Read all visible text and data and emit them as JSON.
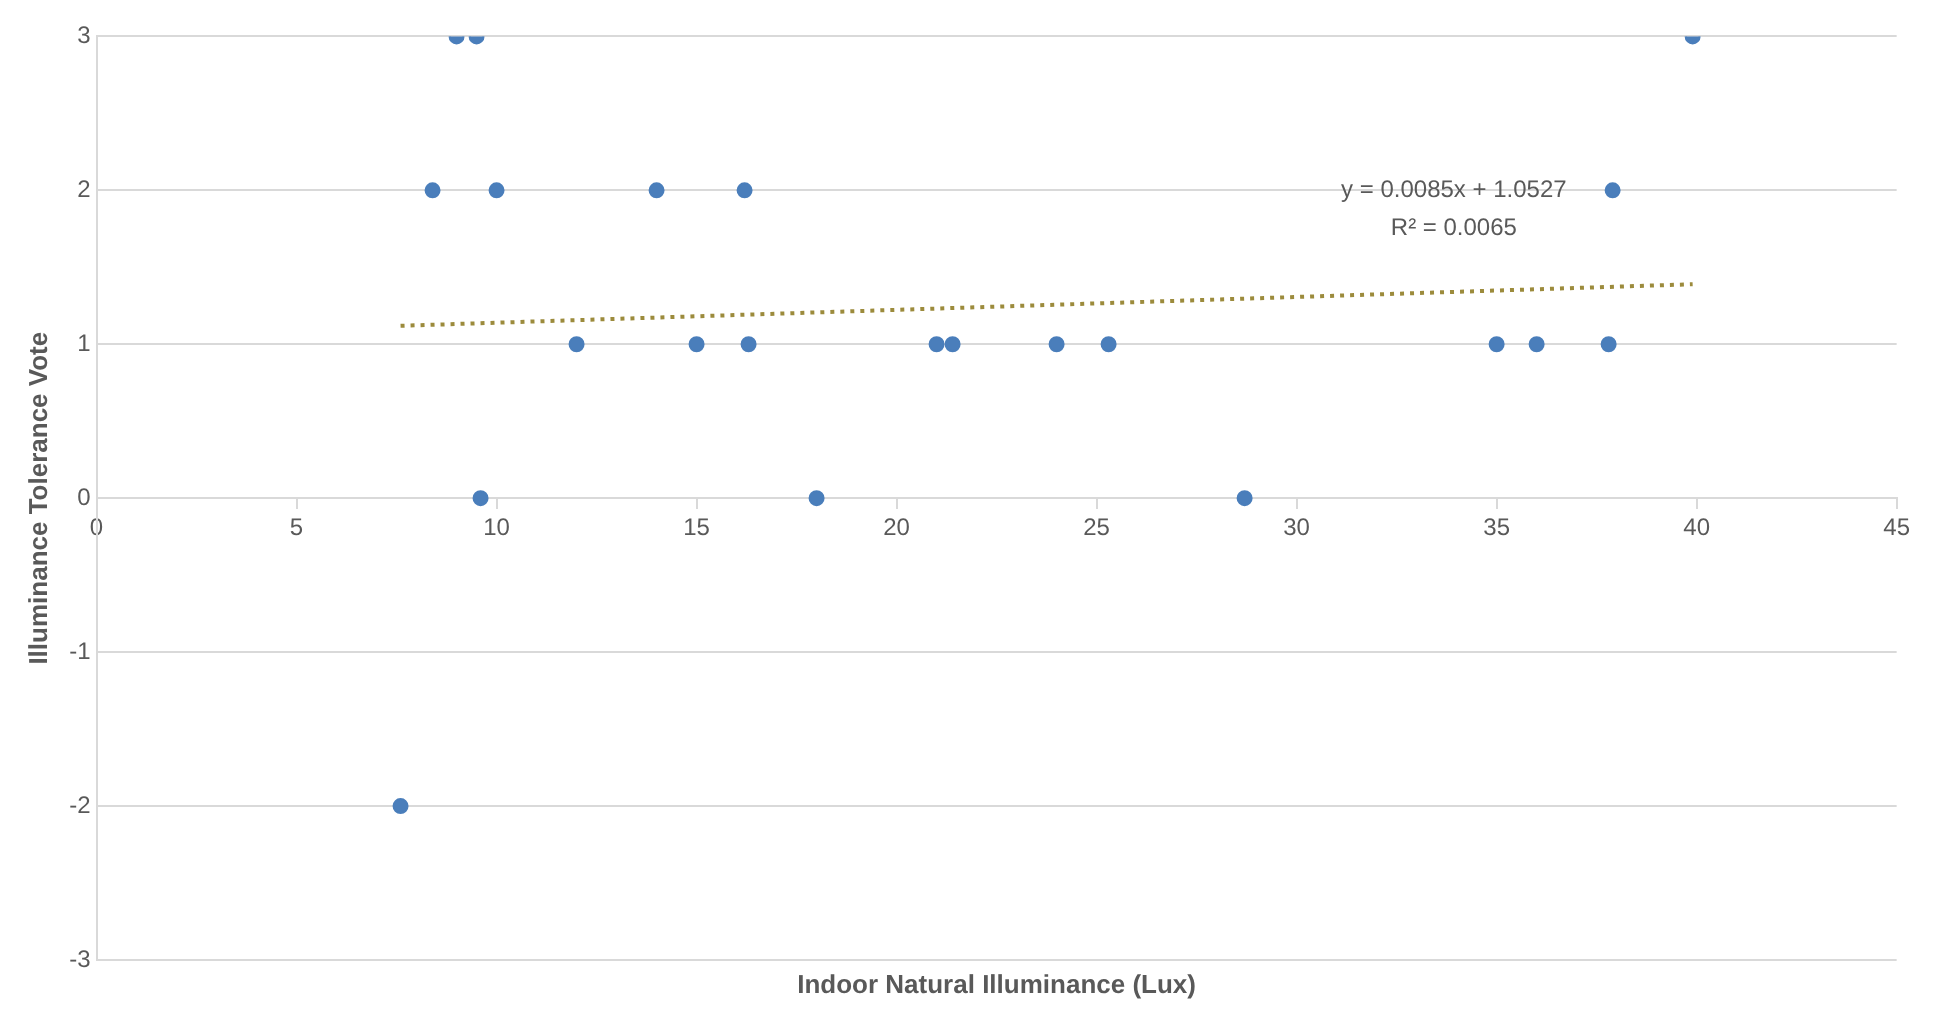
{
  "chart_data": {
    "type": "scatter",
    "xlabel": "Indoor Natural Illuminance (Lux)",
    "ylabel": "Illuminance Tolerance Vote",
    "xlim": [
      0,
      45
    ],
    "xticks": [
      0,
      5,
      10,
      15,
      20,
      25,
      30,
      35,
      40,
      45
    ],
    "ylim": [
      -3,
      3
    ],
    "yticks": [
      -3,
      -2,
      -1,
      0,
      1,
      2,
      3
    ],
    "grid": "y",
    "marker": "circle",
    "series": [
      {
        "color": "#4a7ebb",
        "x": [
          9.0,
          9.5,
          39.9,
          8.4,
          10.0,
          14.0,
          16.2,
          37.9,
          12.0,
          15.0,
          16.3,
          21.0,
          21.4,
          24.0,
          25.3,
          35.0,
          36.0,
          37.8,
          9.6,
          18.0,
          28.7,
          7.6
        ],
        "values": [
          3,
          3,
          3,
          2,
          2,
          2,
          2,
          2,
          1,
          1,
          1,
          1,
          1,
          1,
          1,
          1,
          1,
          1,
          0,
          0,
          0,
          -2
        ]
      },
      {
        "type": "line",
        "color": "#9c8b3c",
        "line_style": "dotted",
        "marker": "none",
        "x": [
          7.6,
          39.9
        ],
        "values": [
          1.12,
          1.39
        ]
      }
    ],
    "annotations": [
      "y = 0.0085x + 1.0527",
      "R² = 0.0065"
    ]
  }
}
